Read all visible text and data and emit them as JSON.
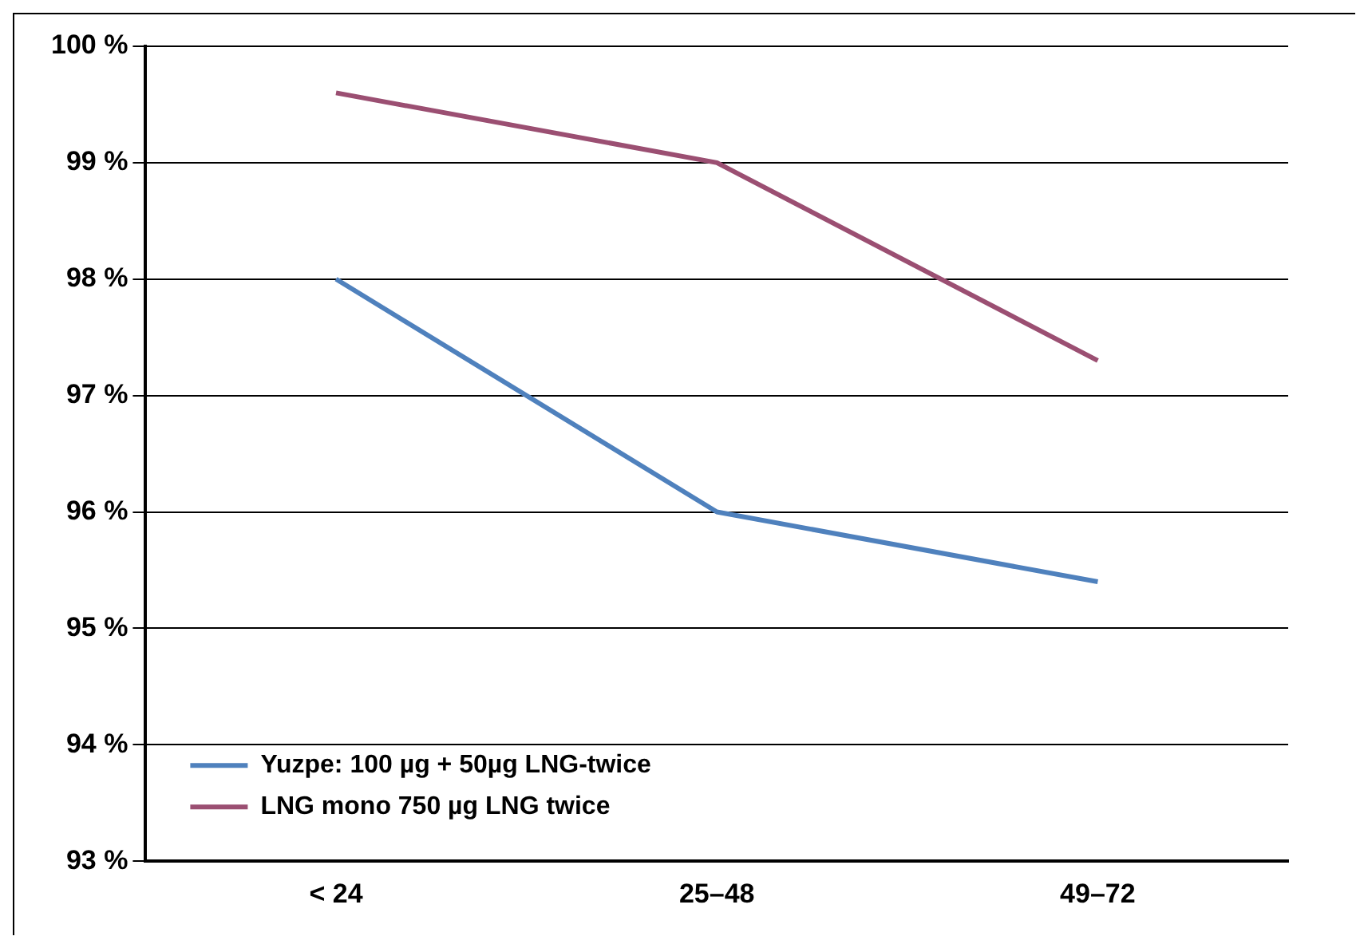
{
  "chart_data": {
    "type": "line",
    "categories": [
      "< 24",
      "25–48",
      "49–72"
    ],
    "series": [
      {
        "name": "Yuzpe: 100 µg + 50µg LNG-twice",
        "color": "#4f81bd",
        "values": [
          98.0,
          96.0,
          95.4
        ]
      },
      {
        "name": "LNG mono 750 µg LNG twice",
        "color": "#9b4f72",
        "values": [
          99.6,
          99.0,
          97.3
        ]
      }
    ],
    "ylim": [
      93,
      100
    ],
    "yticks": [
      {
        "value": 93,
        "label": "93 %"
      },
      {
        "value": 94,
        "label": "94 %"
      },
      {
        "value": 95,
        "label": "95 %"
      },
      {
        "value": 96,
        "label": "96 %"
      },
      {
        "value": 97,
        "label": "97 %"
      },
      {
        "value": 98,
        "label": "98 %"
      },
      {
        "value": 99,
        "label": "99 %"
      },
      {
        "value": 100,
        "label": "100 %"
      }
    ],
    "grid": "y",
    "legend": "bottom left",
    "marker": "none",
    "line_style": "solid"
  }
}
